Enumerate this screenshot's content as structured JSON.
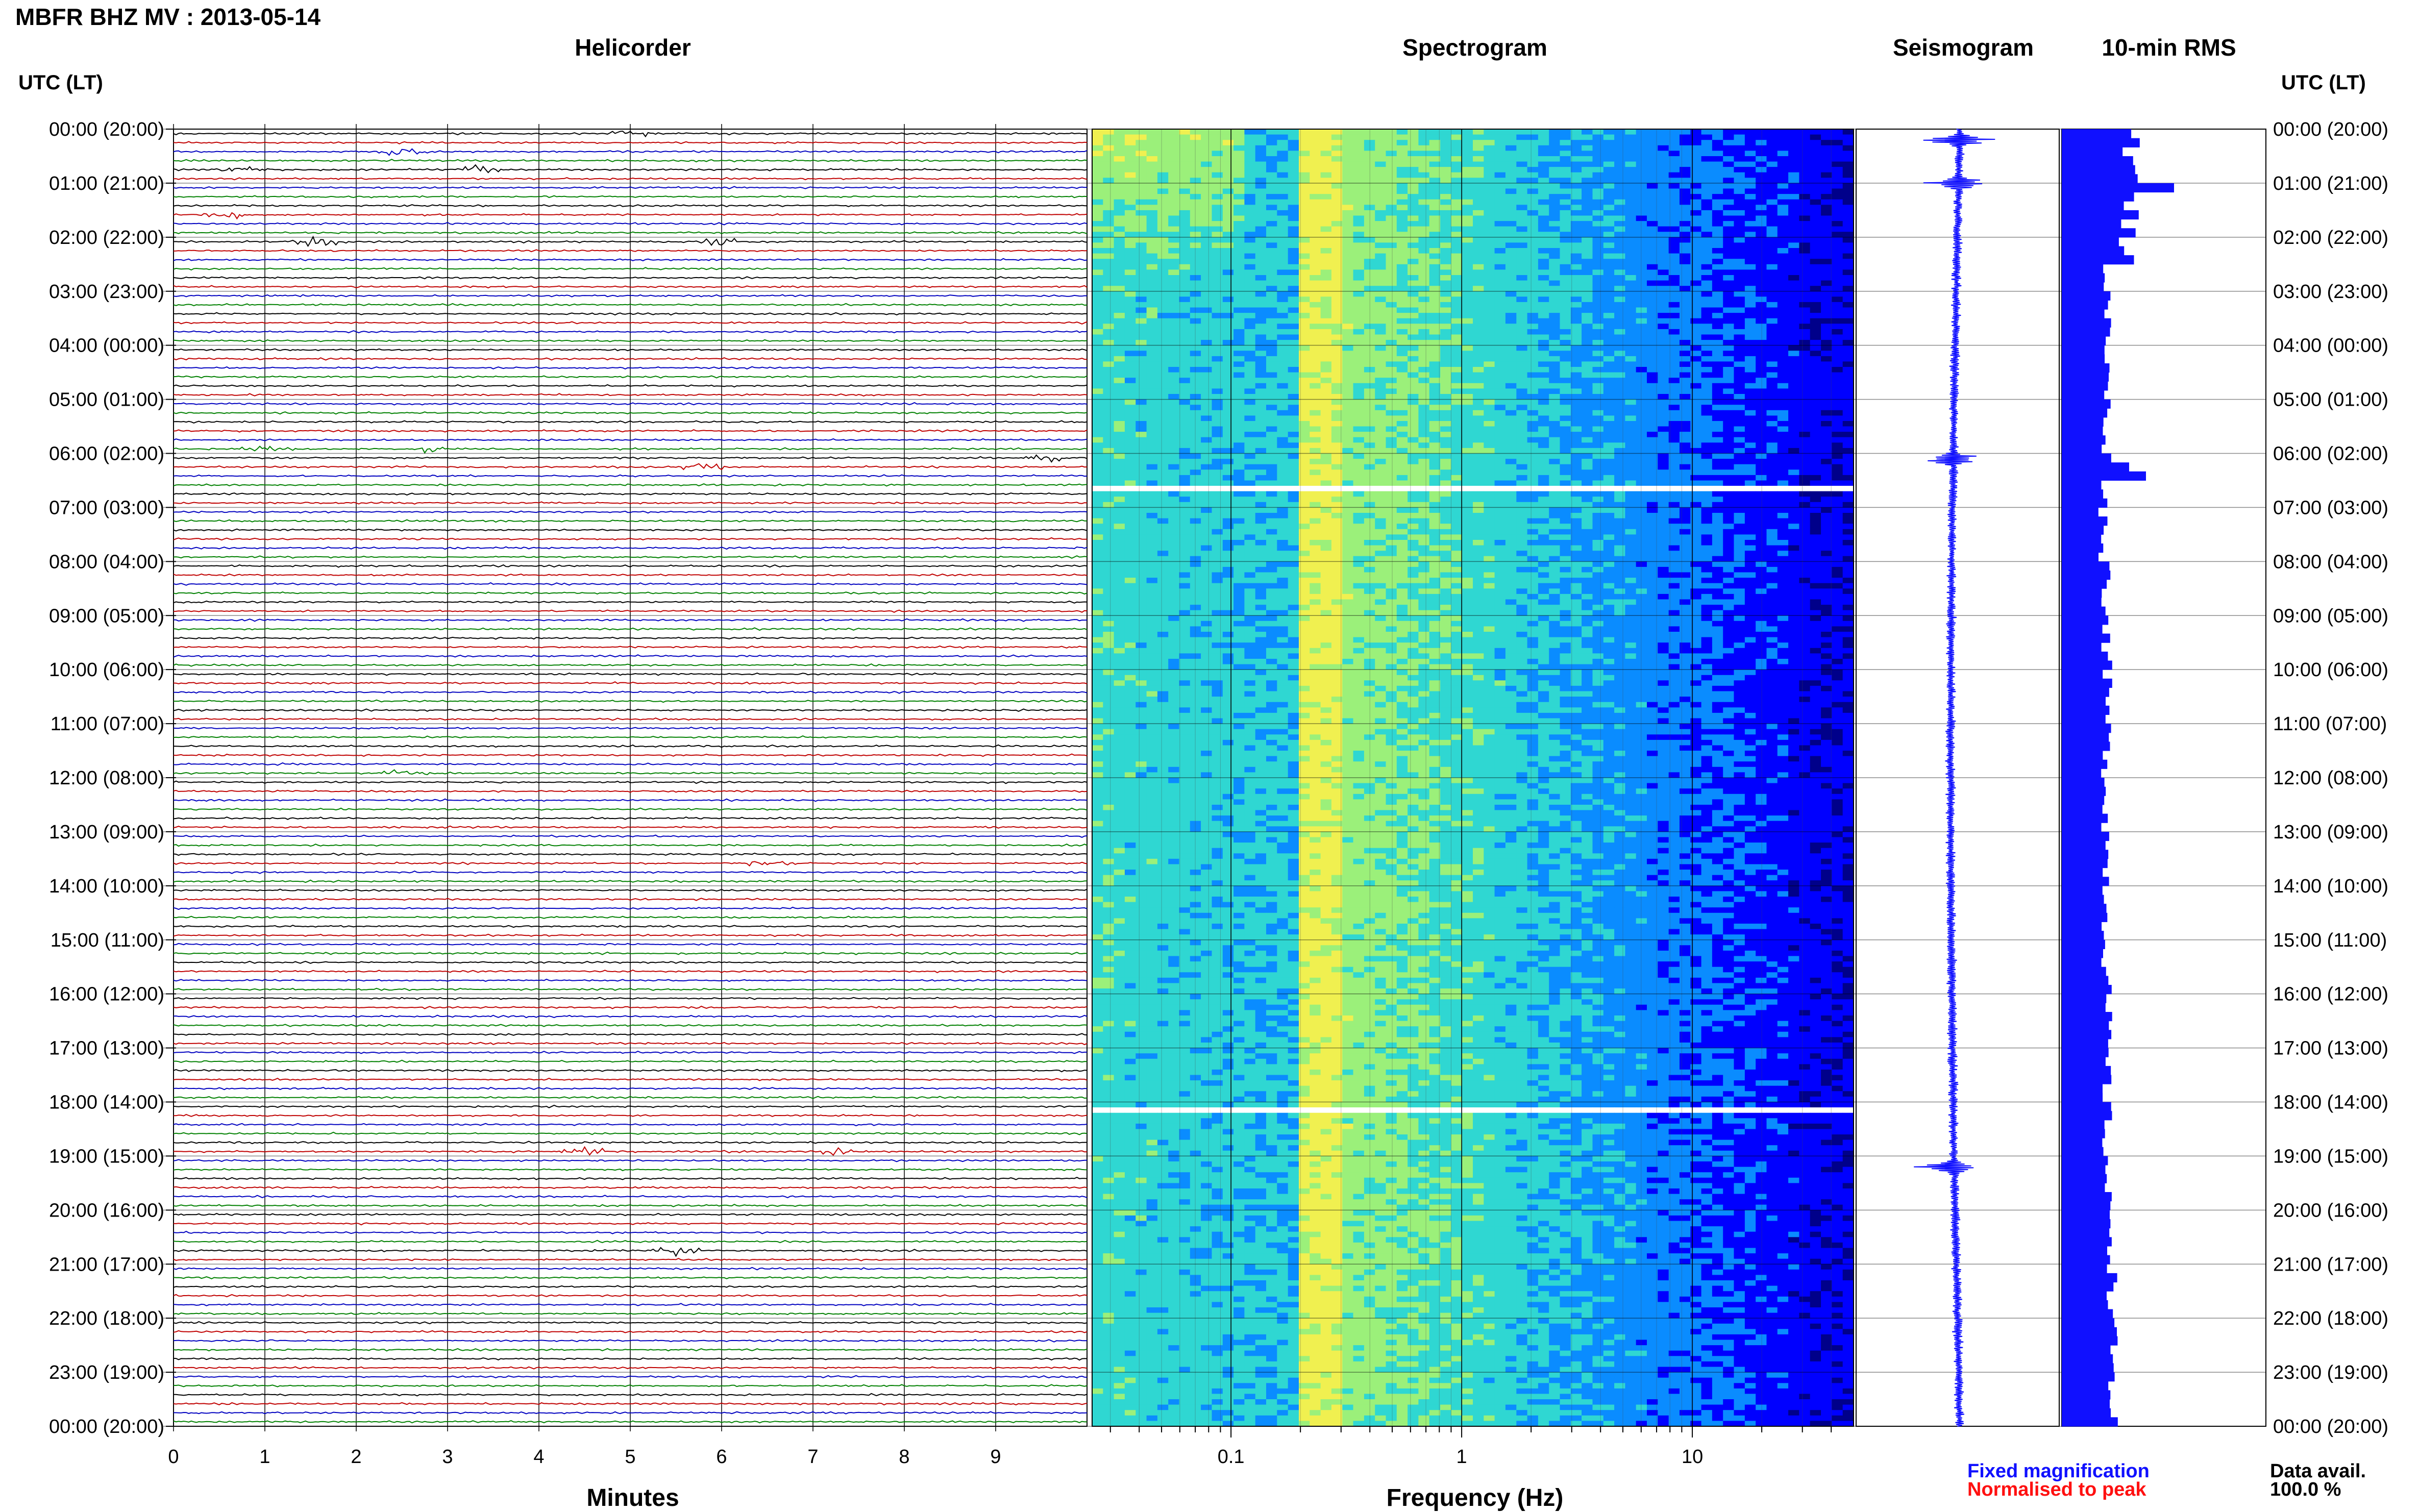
{
  "title": "MBFR BHZ MV : 2013-05-14",
  "panels": {
    "helicorder": "Helicorder",
    "spectrogram": "Spectrogram",
    "seismogram": "Seismogram",
    "rms": "10-min RMS"
  },
  "utc_header": "UTC (LT)",
  "time_labels": [
    "00:00 (20:00)",
    "01:00 (21:00)",
    "02:00 (22:00)",
    "03:00 (23:00)",
    "04:00 (00:00)",
    "05:00 (01:00)",
    "06:00 (02:00)",
    "07:00 (03:00)",
    "08:00 (04:00)",
    "09:00 (05:00)",
    "10:00 (06:00)",
    "11:00 (07:00)",
    "12:00 (08:00)",
    "13:00 (09:00)",
    "14:00 (10:00)",
    "15:00 (11:00)",
    "16:00 (12:00)",
    "17:00 (13:00)",
    "18:00 (14:00)",
    "19:00 (15:00)",
    "20:00 (16:00)",
    "21:00 (17:00)",
    "22:00 (18:00)",
    "23:00 (19:00)",
    "00:00 (20:00)"
  ],
  "legend": {
    "fixed": "Fixed magnification",
    "normalised": "Normalised to peak",
    "fixed_color": "#1010ff",
    "normalised_color": "#ff1010"
  },
  "data_avail": {
    "label": "Data avail.",
    "value": "100.0 %"
  },
  "chart_data": [
    {
      "type": "line",
      "panel": "Helicorder",
      "xlabel": "Minutes",
      "x_ticks": [
        "0",
        "1",
        "2",
        "3",
        "4",
        "5",
        "6",
        "7",
        "8",
        "9"
      ],
      "xlim": [
        0,
        10
      ],
      "trace_colors": [
        "#000000",
        "#c00000",
        "#0000c0",
        "#008000"
      ],
      "events": [
        {
          "row": 0,
          "minute": 5.0
        },
        {
          "row": 2,
          "minute": 2.5
        },
        {
          "row": 4,
          "minute": 3.3
        },
        {
          "row": 4,
          "minute": 0.7
        },
        {
          "row": 9,
          "minute": 0.6
        },
        {
          "row": 12,
          "minute": 1.6
        },
        {
          "row": 12,
          "minute": 6.0
        },
        {
          "row": 35,
          "minute": 1.0
        },
        {
          "row": 35,
          "minute": 2.8
        },
        {
          "row": 36,
          "minute": 9.6
        },
        {
          "row": 37,
          "minute": 5.8
        },
        {
          "row": 71,
          "minute": 2.5
        },
        {
          "row": 81,
          "minute": 6.5
        },
        {
          "row": 113,
          "minute": 4.5
        },
        {
          "row": 113,
          "minute": 7.3
        },
        {
          "row": 124,
          "minute": 5.5
        }
      ]
    },
    {
      "type": "heatmap",
      "panel": "Spectrogram",
      "xlabel": "Frequency (Hz)",
      "x_scale": "log",
      "xlim": [
        0.025,
        50
      ],
      "x_ticks": [
        0.1,
        1,
        10
      ],
      "x_tick_labels": [
        "0.1",
        "1",
        "10"
      ],
      "peak_band_hz": [
        0.2,
        0.3
      ],
      "gaps_hours": [
        6.67,
        18.17
      ],
      "colormap": [
        "#00008a",
        "#0000ff",
        "#0a8cff",
        "#2fd7d2",
        "#9bf07a",
        "#f0f050",
        "#ffa000",
        "#ff2000"
      ]
    },
    {
      "type": "line",
      "panel": "Seismogram",
      "spikes_hours": [
        0.2,
        1.0,
        6.1,
        19.2
      ]
    },
    {
      "type": "bar",
      "panel": "10-min RMS",
      "ylim_hours": [
        0,
        24
      ],
      "events": [
        {
          "hour": 1.0,
          "value": 2.0
        },
        {
          "hour": 6.2,
          "value": 1.2
        },
        {
          "hour": 6.4,
          "value": 1.5
        }
      ]
    }
  ]
}
